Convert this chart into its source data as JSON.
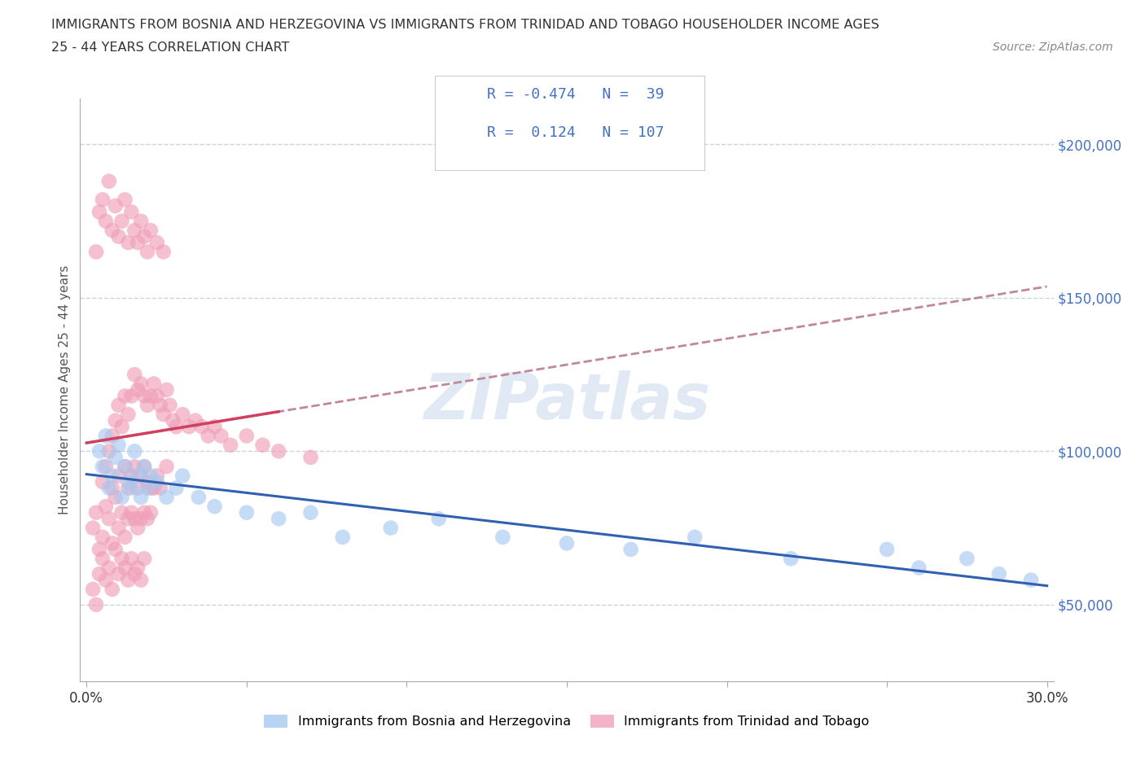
{
  "title_line1": "IMMIGRANTS FROM BOSNIA AND HERZEGOVINA VS IMMIGRANTS FROM TRINIDAD AND TOBAGO HOUSEHOLDER INCOME AGES",
  "title_line2": "25 - 44 YEARS CORRELATION CHART",
  "source_text": "Source: ZipAtlas.com",
  "ylabel": "Householder Income Ages 25 - 44 years",
  "xlim": [
    0.0,
    0.3
  ],
  "ylim": [
    25000,
    215000
  ],
  "ytick_vals": [
    50000,
    100000,
    150000,
    200000
  ],
  "ytick_labels": [
    "$50,000",
    "$100,000",
    "$150,000",
    "$200,000"
  ],
  "xtick_vals": [
    0.0,
    0.05,
    0.1,
    0.15,
    0.2,
    0.25,
    0.3
  ],
  "xtick_show": [
    "0.0%",
    "",
    "",
    "",
    "",
    "",
    "30.0%"
  ],
  "color_bosnia": "#a8c8f0",
  "color_trinidad": "#f0a0b8",
  "line_color_bosnia": "#3060b0",
  "line_color_trinidad": "#d04060",
  "line_color_trinidad_dashed": "#c08898",
  "legend_box_color_bosnia": "#b8d4f4",
  "legend_box_color_trinidad": "#f4b4c8",
  "R_bosnia": -0.474,
  "N_bosnia": 39,
  "R_trinidad": 0.124,
  "N_trinidad": 107,
  "watermark": "ZIPatlas",
  "legend_label_bosnia": "Immigrants from Bosnia and Herzegovina",
  "legend_label_trinidad": "Immigrants from Trinidad and Tobago",
  "bosnia_x": [
    0.004,
    0.005,
    0.006,
    0.007,
    0.008,
    0.009,
    0.01,
    0.011,
    0.012,
    0.013,
    0.014,
    0.015,
    0.016,
    0.017,
    0.018,
    0.019,
    0.02,
    0.022,
    0.025,
    0.028,
    0.03,
    0.035,
    0.04,
    0.05,
    0.06,
    0.07,
    0.08,
    0.095,
    0.11,
    0.13,
    0.15,
    0.17,
    0.19,
    0.22,
    0.25,
    0.26,
    0.275,
    0.285,
    0.295
  ],
  "bosnia_y": [
    100000,
    95000,
    105000,
    88000,
    92000,
    98000,
    102000,
    85000,
    95000,
    90000,
    88000,
    100000,
    92000,
    85000,
    95000,
    88000,
    92000,
    90000,
    85000,
    88000,
    92000,
    85000,
    82000,
    80000,
    78000,
    80000,
    72000,
    75000,
    78000,
    72000,
    70000,
    68000,
    72000,
    65000,
    68000,
    62000,
    65000,
    60000,
    58000
  ],
  "trinidad_x": [
    0.002,
    0.003,
    0.004,
    0.005,
    0.005,
    0.006,
    0.006,
    0.007,
    0.007,
    0.008,
    0.008,
    0.008,
    0.009,
    0.009,
    0.01,
    0.01,
    0.01,
    0.011,
    0.011,
    0.012,
    0.012,
    0.012,
    0.013,
    0.013,
    0.013,
    0.014,
    0.014,
    0.014,
    0.015,
    0.015,
    0.015,
    0.016,
    0.016,
    0.016,
    0.017,
    0.017,
    0.017,
    0.018,
    0.018,
    0.018,
    0.019,
    0.019,
    0.019,
    0.02,
    0.02,
    0.02,
    0.021,
    0.021,
    0.022,
    0.022,
    0.023,
    0.023,
    0.024,
    0.025,
    0.025,
    0.026,
    0.027,
    0.028,
    0.03,
    0.032,
    0.034,
    0.036,
    0.038,
    0.04,
    0.042,
    0.045,
    0.05,
    0.055,
    0.06,
    0.07,
    0.003,
    0.004,
    0.005,
    0.006,
    0.007,
    0.008,
    0.009,
    0.01,
    0.011,
    0.012,
    0.013,
    0.014,
    0.015,
    0.016,
    0.017,
    0.018,
    0.019,
    0.02,
    0.022,
    0.024,
    0.002,
    0.003,
    0.004,
    0.005,
    0.006,
    0.007,
    0.008,
    0.009,
    0.01,
    0.011,
    0.012,
    0.013,
    0.014,
    0.015,
    0.016,
    0.017,
    0.018
  ],
  "trinidad_y": [
    75000,
    80000,
    68000,
    90000,
    72000,
    95000,
    82000,
    100000,
    78000,
    105000,
    88000,
    70000,
    110000,
    85000,
    115000,
    92000,
    75000,
    108000,
    80000,
    118000,
    95000,
    72000,
    112000,
    88000,
    78000,
    118000,
    92000,
    80000,
    125000,
    95000,
    78000,
    120000,
    88000,
    75000,
    122000,
    92000,
    78000,
    118000,
    95000,
    80000,
    115000,
    90000,
    78000,
    118000,
    88000,
    80000,
    122000,
    88000,
    118000,
    92000,
    115000,
    88000,
    112000,
    120000,
    95000,
    115000,
    110000,
    108000,
    112000,
    108000,
    110000,
    108000,
    105000,
    108000,
    105000,
    102000,
    105000,
    102000,
    100000,
    98000,
    165000,
    178000,
    182000,
    175000,
    188000,
    172000,
    180000,
    170000,
    175000,
    182000,
    168000,
    178000,
    172000,
    168000,
    175000,
    170000,
    165000,
    172000,
    168000,
    165000,
    55000,
    50000,
    60000,
    65000,
    58000,
    62000,
    55000,
    68000,
    60000,
    65000,
    62000,
    58000,
    65000,
    60000,
    62000,
    58000,
    65000
  ]
}
